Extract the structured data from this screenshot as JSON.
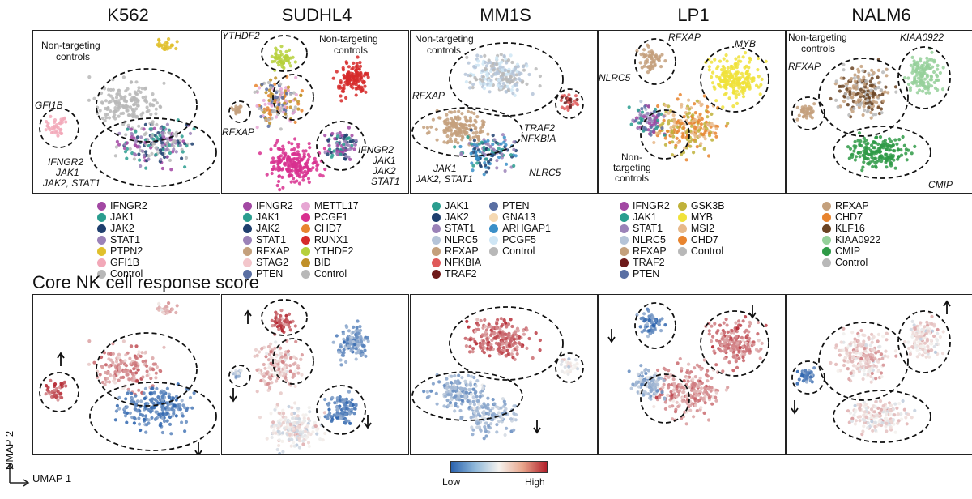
{
  "section_title": "Core NK cell response score",
  "axes": {
    "x": "UMAP 1",
    "y": "UMAP 2"
  },
  "colorbar": {
    "low": "Low",
    "high": "High",
    "colors": [
      "#2b63ae",
      "#f5f2ee",
      "#b2202b"
    ]
  },
  "chart_data": [
    {
      "type": "scatter",
      "title": "K562",
      "annotations": [
        "Non-targeting controls",
        "GFI1B",
        "IFNGR2 JAK1 JAK2, STAT1"
      ],
      "legend": [
        {
          "label": "IFNGR2",
          "color": "#a248a3"
        },
        {
          "label": "JAK1",
          "color": "#2a9d8f"
        },
        {
          "label": "JAK2",
          "color": "#1f3f6e"
        },
        {
          "label": "STAT1",
          "color": "#9b82b8"
        },
        {
          "label": "PTPN2",
          "color": "#e0c02c"
        },
        {
          "label": "GFI1B",
          "color": "#f2a8b8"
        },
        {
          "label": "Control",
          "color": "#b8b8b8"
        }
      ],
      "score_arrows": [
        "up",
        "down"
      ]
    },
    {
      "type": "scatter",
      "title": "SUDHL4",
      "annotations": [
        "YTHDF2",
        "Non-targeting controls",
        "RFXAP",
        "IFNGR2 JAK1 JAK2 STAT1"
      ],
      "legend": [
        {
          "label": "IFNGR2",
          "color": "#a248a3"
        },
        {
          "label": "JAK1",
          "color": "#2a9d8f"
        },
        {
          "label": "JAK2",
          "color": "#1f3f6e"
        },
        {
          "label": "STAT1",
          "color": "#9b82b8"
        },
        {
          "label": "RFXAP",
          "color": "#c4a07c"
        },
        {
          "label": "STAG2",
          "color": "#f3c6cb"
        },
        {
          "label": "PTEN",
          "color": "#5a6fa3"
        },
        {
          "label": "METTL17",
          "color": "#e6a6d3"
        },
        {
          "label": "PCGF1",
          "color": "#d8308f"
        },
        {
          "label": "CHD7",
          "color": "#e8842e"
        },
        {
          "label": "RUNX1",
          "color": "#d62a2a"
        },
        {
          "label": "YTHDF2",
          "color": "#b6d03b"
        },
        {
          "label": "BID",
          "color": "#c09028"
        },
        {
          "label": "Control",
          "color": "#b8b8b8"
        }
      ],
      "score_arrows": [
        "up",
        "down",
        "down"
      ]
    },
    {
      "type": "scatter",
      "title": "MM1S",
      "annotations": [
        "Non-targeting controls",
        "RFXAP",
        "TRAF2 NFKBIA",
        "JAK1 JAK2, STAT1",
        "NLRC5"
      ],
      "legend": [
        {
          "label": "JAK1",
          "color": "#2a9d8f"
        },
        {
          "label": "JAK2",
          "color": "#1f3f6e"
        },
        {
          "label": "STAT1",
          "color": "#9b82b8"
        },
        {
          "label": "NLRC5",
          "color": "#b5c4d8"
        },
        {
          "label": "RFXAP",
          "color": "#c4a07c"
        },
        {
          "label": "NFKBIA",
          "color": "#e05a5a"
        },
        {
          "label": "TRAF2",
          "color": "#6e1a1a"
        },
        {
          "label": "PTEN",
          "color": "#5a6fa3"
        },
        {
          "label": "GNA13",
          "color": "#f5d9b3"
        },
        {
          "label": "ARHGAP1",
          "color": "#3a8fc8"
        },
        {
          "label": "PCGF5",
          "color": "#cfe6f5"
        },
        {
          "label": "Control",
          "color": "#b8b8b8"
        }
      ],
      "score_arrows": [
        "down"
      ]
    },
    {
      "type": "scatter",
      "title": "LP1",
      "annotations": [
        "RFXAP",
        "MYB",
        "NLRC5",
        "Non-targeting controls"
      ],
      "legend": [
        {
          "label": "IFNGR2",
          "color": "#a248a3"
        },
        {
          "label": "JAK1",
          "color": "#2a9d8f"
        },
        {
          "label": "STAT1",
          "color": "#9b82b8"
        },
        {
          "label": "NLRC5",
          "color": "#b5c4d8"
        },
        {
          "label": "RFXAP",
          "color": "#c4a07c"
        },
        {
          "label": "TRAF2",
          "color": "#6e1a1a"
        },
        {
          "label": "PTEN",
          "color": "#5a6fa3"
        },
        {
          "label": "GSK3B",
          "color": "#c0b23a"
        },
        {
          "label": "MYB",
          "color": "#f0e23a"
        },
        {
          "label": "MSI2",
          "color": "#e7b98a"
        },
        {
          "label": "CHD7",
          "color": "#e8842e"
        },
        {
          "label": "Control",
          "color": "#b8b8b8"
        }
      ],
      "score_arrows": [
        "down",
        "down"
      ]
    },
    {
      "type": "scatter",
      "title": "NALM6",
      "annotations": [
        "Non-targeting controls",
        "KIAA0922",
        "RFXAP",
        "CMIP"
      ],
      "legend": [
        {
          "label": "RFXAP",
          "color": "#c4a07c"
        },
        {
          "label": "CHD7",
          "color": "#e8842e"
        },
        {
          "label": "KLF16",
          "color": "#6b4423"
        },
        {
          "label": "KIAA0922",
          "color": "#95d09a"
        },
        {
          "label": "CMIP",
          "color": "#2f9a47"
        },
        {
          "label": "Control",
          "color": "#b8b8b8"
        }
      ],
      "score_arrows": [
        "up",
        "down"
      ]
    }
  ]
}
